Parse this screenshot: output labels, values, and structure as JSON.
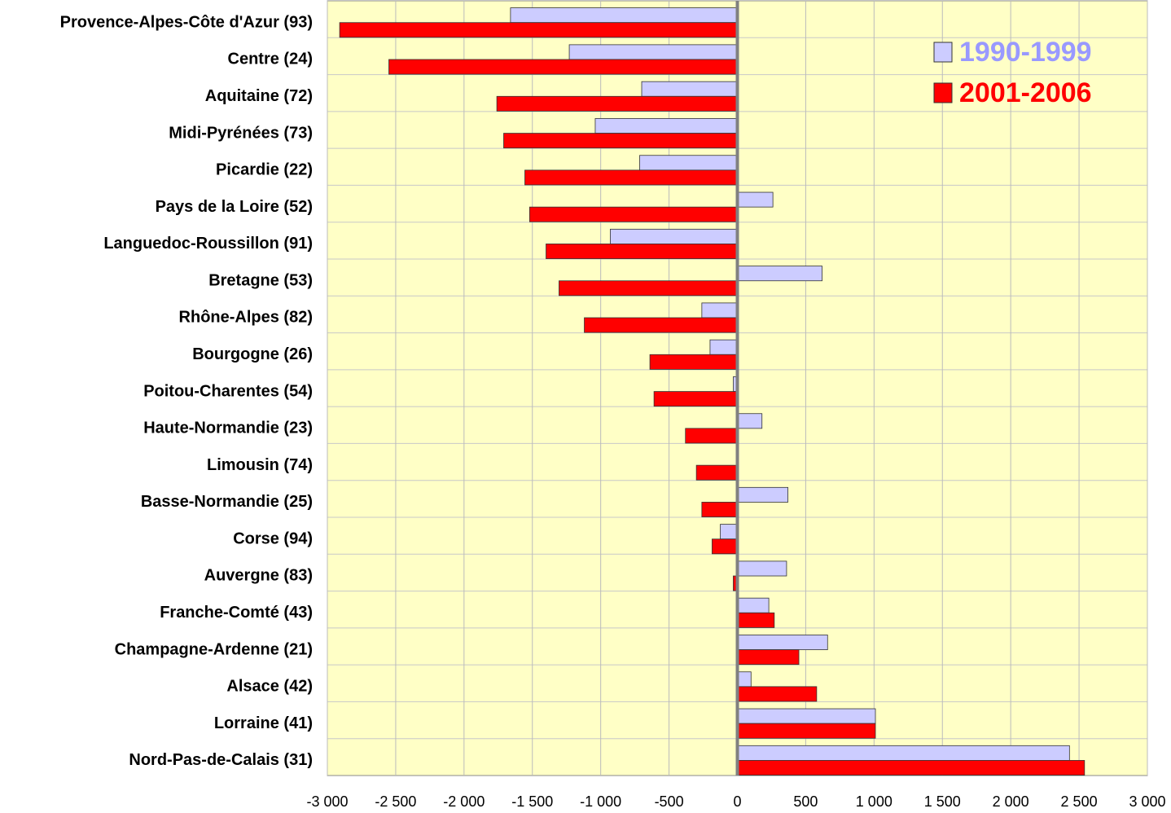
{
  "chart_data": {
    "type": "bar",
    "orientation": "horizontal",
    "categories": [
      "Provence-Alpes-Côte d'Azur (93)",
      "Centre (24)",
      "Aquitaine (72)",
      "Midi-Pyrénées (73)",
      "Picardie (22)",
      "Pays de la Loire (52)",
      "Languedoc-Roussillon (91)",
      "Bretagne (53)",
      "Rhône-Alpes (82)",
      "Bourgogne (26)",
      "Poitou-Charentes (54)",
      "Haute-Normandie (23)",
      "Limousin (74)",
      "Basse-Normandie (25)",
      "Corse (94)",
      "Auvergne (83)",
      "Franche-Comté (43)",
      "Champagne-Ardenne (21)",
      "Alsace (42)",
      "Lorraine (41)",
      "Nord-Pas-de-Calais (31)"
    ],
    "series": [
      {
        "name": "1990-1999",
        "color": "#ccccff",
        "text_color": "#9999ff",
        "values": [
          -1660,
          -1230,
          -700,
          -1040,
          -715,
          260,
          -930,
          620,
          -260,
          -200,
          -30,
          180,
          0,
          370,
          -125,
          360,
          230,
          660,
          100,
          1010,
          2430
        ]
      },
      {
        "name": "2001-2006",
        "color": "#ff0000",
        "text_color": "#ff0000",
        "values": [
          -2910,
          -2550,
          -1760,
          -1710,
          -1555,
          -1520,
          -1400,
          -1305,
          -1120,
          -640,
          -610,
          -380,
          -300,
          -260,
          -185,
          -30,
          270,
          450,
          580,
          1010,
          2540
        ]
      }
    ],
    "xlim": [
      -3000,
      3000
    ],
    "xticks": [
      {
        "value": -3000,
        "label": "-3 000"
      },
      {
        "value": -2500,
        "label": "-2 500"
      },
      {
        "value": -2000,
        "label": "-2 000"
      },
      {
        "value": -1500,
        "label": "-1 500"
      },
      {
        "value": -1000,
        "label": "-1 000"
      },
      -500,
      0,
      500,
      {
        "value": 1000,
        "label": "1 000"
      },
      {
        "value": 1500,
        "label": "1 500"
      },
      {
        "value": 2000,
        "label": "2 000"
      },
      {
        "value": 2500,
        "label": "2 500"
      },
      {
        "value": 3000,
        "label": "3 000"
      }
    ],
    "grid": true,
    "legend": "upper right",
    "background": "#ffffc6"
  }
}
